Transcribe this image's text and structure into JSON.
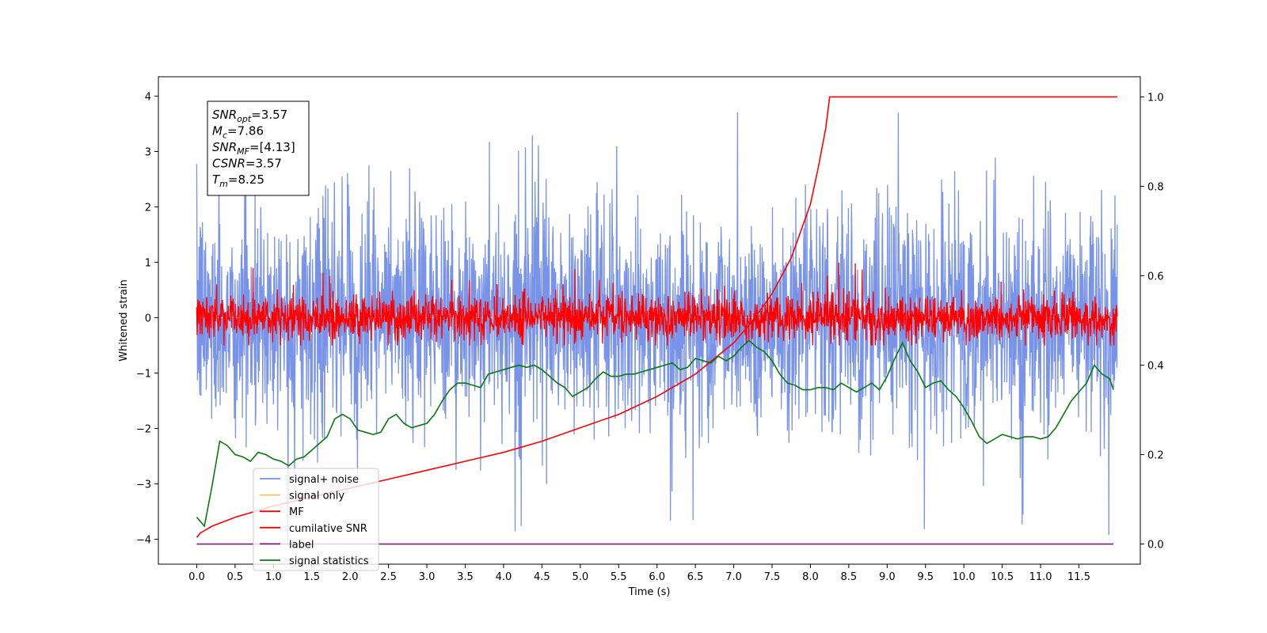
{
  "chart_data": {
    "type": "line",
    "xlabel": "Time (s)",
    "ylabel": "Whitened strain",
    "xlim": [
      -0.5,
      12.3
    ],
    "ylim": [
      -4.45,
      4.35
    ],
    "y2lim": [
      -0.045,
      1.045
    ],
    "x_ticks": [
      0.0,
      0.5,
      1.0,
      1.5,
      2.0,
      2.5,
      3.0,
      3.5,
      4.0,
      4.5,
      5.0,
      5.5,
      6.0,
      6.5,
      7.0,
      7.5,
      8.0,
      8.5,
      9.0,
      9.5,
      10.0,
      10.5,
      11.0,
      11.5
    ],
    "x_tick_labels": [
      "0.0",
      "0.5",
      "1.0",
      "1.5",
      "2.0",
      "2.5",
      "3.0",
      "3.5",
      "4.0",
      "4.5",
      "5.0",
      "5.5",
      "6.0",
      "6.5",
      "7.0",
      "7.5",
      "8.0",
      "8.5",
      "9.0",
      "9.5",
      "10.0",
      "10.5",
      "11.0",
      "11.5"
    ],
    "y_ticks": [
      -4,
      -3,
      -2,
      -1,
      0,
      1,
      2,
      3,
      4
    ],
    "y_tick_labels": [
      "−4",
      "−3",
      "−2",
      "−1",
      "0",
      "1",
      "2",
      "3",
      "4"
    ],
    "y2_ticks": [
      0.0,
      0.2,
      0.4,
      0.6,
      0.8,
      1.0
    ],
    "y2_tick_labels": [
      "0.0",
      "0.2",
      "0.4",
      "0.6",
      "0.8",
      "1.0"
    ],
    "grid": false,
    "legend_position": "lower-left",
    "annotation": [
      {
        "sym": "SNR",
        "sub": "opt",
        "value": "=3.57"
      },
      {
        "sym": "M",
        "sub": "c",
        "value": "=7.86"
      },
      {
        "sym": "SNR",
        "sub": "MF",
        "value": "=[4.13]"
      },
      {
        "sym": "CSNR",
        "sub": "",
        "value": "=3.57"
      },
      {
        "sym": "T",
        "sub": "m",
        "value": "=8.25"
      }
    ],
    "series": [
      {
        "name": "signal+ noise",
        "color": "#7893e8",
        "axis": "left",
        "kind": "noise",
        "x_range": [
          0.0,
          12.0
        ],
        "envelope": {
          "typical_high": 2.0,
          "typical_low": -2.0,
          "max": 3.93,
          "min": -4.13
        }
      },
      {
        "name": "signal only",
        "color": "#f5c46a",
        "axis": "left",
        "kind": "flat",
        "x_range": [
          0.0,
          12.0
        ],
        "value": 0.0
      },
      {
        "name": "MF",
        "color": "#ff0000",
        "axis": "left",
        "kind": "noise",
        "x_range": [
          0.0,
          12.0
        ],
        "envelope": {
          "typical_high": 0.4,
          "typical_low": -0.4,
          "max": 1.0,
          "min": -0.5
        }
      },
      {
        "name": "cumilative SNR",
        "color": "#ff0000",
        "axis": "right",
        "kind": "line",
        "x": [
          0.0,
          0.05,
          0.2,
          0.5,
          1.0,
          1.5,
          2.0,
          2.5,
          3.0,
          3.5,
          4.0,
          4.5,
          5.0,
          5.5,
          6.0,
          6.5,
          7.0,
          7.25,
          7.5,
          7.75,
          8.0,
          8.1,
          8.2,
          8.25,
          12.0
        ],
        "values": [
          0.015,
          0.025,
          0.04,
          0.06,
          0.085,
          0.105,
          0.125,
          0.145,
          0.165,
          0.185,
          0.205,
          0.23,
          0.26,
          0.29,
          0.33,
          0.38,
          0.45,
          0.5,
          0.56,
          0.64,
          0.76,
          0.84,
          0.93,
          1.0,
          1.0
        ]
      },
      {
        "name": "label",
        "color": "#7a1a7a",
        "axis": "right",
        "kind": "line",
        "x": [
          0.0,
          11.95
        ],
        "values": [
          0.0,
          0.0
        ]
      },
      {
        "name": "signal statistics",
        "color": "#0a7a0a",
        "axis": "right",
        "kind": "line",
        "x": [
          0.0,
          0.1,
          0.2,
          0.3,
          0.4,
          0.5,
          0.6,
          0.7,
          0.8,
          0.9,
          1.0,
          1.1,
          1.2,
          1.3,
          1.4,
          1.5,
          1.6,
          1.7,
          1.8,
          1.9,
          2.0,
          2.1,
          2.2,
          2.3,
          2.4,
          2.5,
          2.6,
          2.7,
          2.8,
          2.9,
          3.0,
          3.1,
          3.2,
          3.3,
          3.4,
          3.5,
          3.6,
          3.7,
          3.8,
          3.9,
          4.0,
          4.1,
          4.2,
          4.3,
          4.4,
          4.5,
          4.6,
          4.7,
          4.8,
          4.9,
          5.0,
          5.1,
          5.2,
          5.3,
          5.4,
          5.5,
          5.6,
          5.7,
          5.8,
          5.9,
          6.0,
          6.1,
          6.2,
          6.3,
          6.4,
          6.5,
          6.6,
          6.7,
          6.8,
          6.9,
          7.0,
          7.1,
          7.2,
          7.3,
          7.4,
          7.5,
          7.6,
          7.7,
          7.8,
          7.9,
          8.0,
          8.1,
          8.2,
          8.3,
          8.4,
          8.5,
          8.6,
          8.7,
          8.8,
          8.9,
          9.0,
          9.1,
          9.2,
          9.3,
          9.4,
          9.5,
          9.6,
          9.7,
          9.8,
          9.9,
          10.0,
          10.1,
          10.2,
          10.3,
          10.4,
          10.5,
          10.6,
          10.7,
          10.8,
          10.9,
          11.0,
          11.1,
          11.2,
          11.3,
          11.4,
          11.5,
          11.6,
          11.7,
          11.8,
          11.9,
          11.95
        ],
        "values": [
          0.06,
          0.04,
          0.13,
          0.23,
          0.22,
          0.2,
          0.195,
          0.185,
          0.205,
          0.2,
          0.19,
          0.185,
          0.175,
          0.19,
          0.195,
          0.21,
          0.225,
          0.24,
          0.28,
          0.29,
          0.28,
          0.255,
          0.25,
          0.245,
          0.25,
          0.28,
          0.29,
          0.27,
          0.26,
          0.265,
          0.27,
          0.29,
          0.32,
          0.345,
          0.36,
          0.36,
          0.355,
          0.35,
          0.38,
          0.385,
          0.39,
          0.395,
          0.4,
          0.395,
          0.4,
          0.39,
          0.375,
          0.36,
          0.35,
          0.33,
          0.34,
          0.35,
          0.37,
          0.385,
          0.375,
          0.375,
          0.38,
          0.38,
          0.385,
          0.39,
          0.395,
          0.4,
          0.405,
          0.39,
          0.395,
          0.415,
          0.41,
          0.405,
          0.42,
          0.41,
          0.42,
          0.44,
          0.455,
          0.44,
          0.43,
          0.41,
          0.38,
          0.36,
          0.355,
          0.345,
          0.345,
          0.35,
          0.35,
          0.345,
          0.36,
          0.35,
          0.34,
          0.35,
          0.36,
          0.345,
          0.375,
          0.415,
          0.45,
          0.41,
          0.385,
          0.35,
          0.36,
          0.365,
          0.345,
          0.33,
          0.305,
          0.275,
          0.24,
          0.225,
          0.235,
          0.245,
          0.24,
          0.235,
          0.24,
          0.24,
          0.235,
          0.24,
          0.26,
          0.29,
          0.32,
          0.34,
          0.36,
          0.4,
          0.38,
          0.37,
          0.345
        ]
      }
    ]
  }
}
